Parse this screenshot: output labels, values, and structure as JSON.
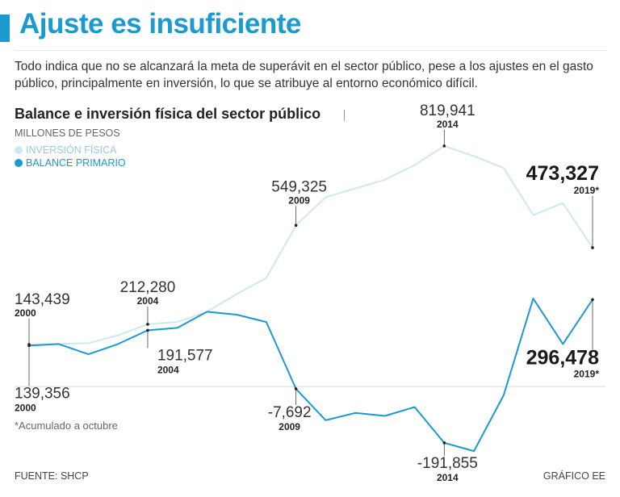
{
  "header": {
    "title": "Ajuste es insuficiente",
    "subtitle": "Todo indica que no se alcanzará la meta de superávit en el sector público, pese a los ajustes en el gasto público, principalmente en inversión, lo que se atribuye al entorno económico difícil."
  },
  "chart_header": {
    "title": "Balance e inversión física del sector público",
    "units": "MILLONES DE PESOS"
  },
  "legend": {
    "inversion": "INVERSIÓN FÍSICA",
    "balance": "BALANCE PRIMARIO"
  },
  "colors": {
    "accent": "#1a9ad0",
    "inversion": "#cfe7f4",
    "balance": "#1a9ad0",
    "baseline": "#d6d6d6"
  },
  "footer": {
    "note": "*Acumulado a octubre",
    "source": "FUENTE: SHCP",
    "credit": "GRÁFICO EE"
  },
  "chart_data": {
    "type": "line",
    "title": "Balance e inversión física del sector público",
    "ylabel": "MILLONES DE PESOS",
    "ylim": [
      -250000,
      850000
    ],
    "x": [
      "2000",
      "2001",
      "2002",
      "2003",
      "2004",
      "2005",
      "2006",
      "2007",
      "2008",
      "2009",
      "2010",
      "2011",
      "2012",
      "2013",
      "2014",
      "2015",
      "2016",
      "2017",
      "2018",
      "2019*"
    ],
    "series": [
      {
        "name": "INVERSIÓN FÍSICA",
        "values": [
          143439,
          145000,
          148000,
          175000,
          212280,
          220000,
          255000,
          315000,
          370000,
          549325,
          645000,
          675000,
          705000,
          755000,
          819941,
          785000,
          745000,
          585000,
          625000,
          473327
        ]
      },
      {
        "name": "BALANCE PRIMARIO",
        "values": [
          139356,
          145000,
          110000,
          145000,
          191577,
          200000,
          255000,
          245000,
          220000,
          -7692,
          -115000,
          -90000,
          -100000,
          -70000,
          -191855,
          -220000,
          -30000,
          300000,
          145000,
          296478
        ]
      }
    ],
    "annotations": [
      {
        "series": 0,
        "index": 0,
        "value": "143,439",
        "label": "2000",
        "style": "normal"
      },
      {
        "series": 0,
        "index": 4,
        "value": "212,280",
        "label": "2004",
        "style": "normal"
      },
      {
        "series": 0,
        "index": 9,
        "value": "549,325",
        "label": "2009",
        "style": "normal"
      },
      {
        "series": 0,
        "index": 14,
        "value": "819,941",
        "label": "2014",
        "style": "normal"
      },
      {
        "series": 0,
        "index": 19,
        "value": "473,327",
        "label": "2019*",
        "style": "bold"
      },
      {
        "series": 1,
        "index": 0,
        "value": "139,356",
        "label": "2000",
        "style": "normal"
      },
      {
        "series": 1,
        "index": 4,
        "value": "191,577",
        "label": "2004",
        "style": "normal"
      },
      {
        "series": 1,
        "index": 9,
        "value": "-7,692",
        "label": "2009",
        "style": "normal"
      },
      {
        "series": 1,
        "index": 14,
        "value": "-191,855",
        "label": "2014",
        "style": "normal"
      },
      {
        "series": 1,
        "index": 19,
        "value": "296,478",
        "label": "2019*",
        "style": "bold"
      }
    ]
  }
}
